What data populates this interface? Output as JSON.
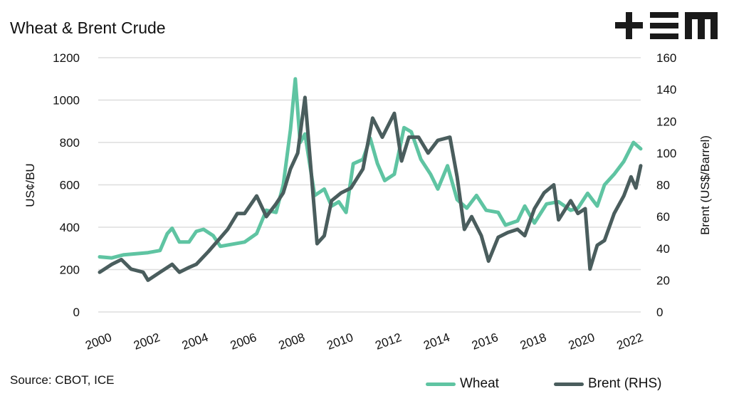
{
  "title": "Wheat & Brent Crude",
  "source": "Source: CBOT, ICE",
  "logo_text": "+EM",
  "colors": {
    "wheat": "#5fc4a2",
    "brent": "#4a5d5d",
    "grid": "#dddddd"
  },
  "chart_data": {
    "type": "line",
    "title": "Wheat & Brent Crude",
    "ylabel": "US¢/BU",
    "y2label": "Brent (US$/Barrel)",
    "ylim": [
      0,
      1200
    ],
    "y2lim": [
      0,
      160
    ],
    "yticks": [
      "0",
      "200",
      "400",
      "600",
      "800",
      "1000",
      "1200"
    ],
    "y2ticks": [
      "0",
      "20",
      "40",
      "60",
      "80",
      "100",
      "120",
      "140",
      "160"
    ],
    "xticks": [
      "2000",
      "2002",
      "2004",
      "2006",
      "2008",
      "2010",
      "2012",
      "2014",
      "2016",
      "2018",
      "2020",
      "2022"
    ],
    "grid": true,
    "legend": "bottom-right",
    "series": [
      {
        "name": "Wheat",
        "axis": "left",
        "x": [
          2000,
          2000.5,
          2001,
          2001.5,
          2002,
          2002.5,
          2002.8,
          2003,
          2003.3,
          2003.7,
          2004,
          2004.3,
          2004.7,
          2005,
          2005.5,
          2006,
          2006.5,
          2006.9,
          2007.3,
          2007.6,
          2007.9,
          2008.1,
          2008.3,
          2008.5,
          2008.9,
          2009.3,
          2009.6,
          2009.9,
          2010.2,
          2010.5,
          2010.9,
          2011.2,
          2011.5,
          2011.8,
          2012.2,
          2012.6,
          2012.9,
          2013.3,
          2013.7,
          2014,
          2014.4,
          2014.8,
          2015.2,
          2015.6,
          2016,
          2016.5,
          2016.8,
          2017.3,
          2017.6,
          2018,
          2018.5,
          2019,
          2019.5,
          2019.8,
          2020.2,
          2020.6,
          2020.9,
          2021.3,
          2021.7,
          2022.1,
          2022.4
        ],
        "values": [
          260,
          255,
          270,
          275,
          280,
          290,
          370,
          395,
          330,
          330,
          380,
          390,
          360,
          310,
          320,
          330,
          370,
          480,
          470,
          600,
          860,
          1100,
          800,
          840,
          550,
          580,
          500,
          520,
          470,
          700,
          720,
          820,
          700,
          620,
          650,
          870,
          850,
          720,
          650,
          580,
          690,
          530,
          490,
          550,
          480,
          470,
          410,
          430,
          500,
          420,
          510,
          520,
          480,
          490,
          560,
          500,
          600,
          650,
          710,
          800,
          770
        ]
      },
      {
        "name": "Brent (RHS)",
        "axis": "right",
        "x": [
          2000,
          2000.5,
          2000.9,
          2001.3,
          2001.8,
          2002,
          2002.5,
          2003,
          2003.3,
          2003.7,
          2004,
          2004.5,
          2004.9,
          2005.3,
          2005.7,
          2006,
          2006.5,
          2006.9,
          2007.3,
          2007.6,
          2007.9,
          2008.2,
          2008.5,
          2008.8,
          2009,
          2009.3,
          2009.6,
          2010,
          2010.4,
          2010.9,
          2011.3,
          2011.7,
          2012.2,
          2012.5,
          2012.8,
          2013.2,
          2013.6,
          2014,
          2014.5,
          2014.8,
          2015.1,
          2015.4,
          2015.8,
          2016.1,
          2016.5,
          2016.9,
          2017.3,
          2017.6,
          2018,
          2018.4,
          2018.8,
          2019,
          2019.5,
          2019.8,
          2020.1,
          2020.3,
          2020.6,
          2020.9,
          2021.3,
          2021.7,
          2022,
          2022.2,
          2022.4
        ],
        "values": [
          25,
          30,
          33,
          27,
          25,
          20,
          25,
          30,
          25,
          28,
          30,
          38,
          45,
          52,
          62,
          62,
          73,
          60,
          68,
          75,
          90,
          100,
          135,
          80,
          43,
          48,
          70,
          75,
          78,
          90,
          122,
          110,
          125,
          95,
          110,
          110,
          100,
          108,
          110,
          85,
          52,
          60,
          48,
          32,
          47,
          50,
          52,
          48,
          65,
          75,
          80,
          58,
          70,
          62,
          65,
          27,
          42,
          45,
          62,
          73,
          85,
          78,
          92
        ]
      }
    ]
  }
}
